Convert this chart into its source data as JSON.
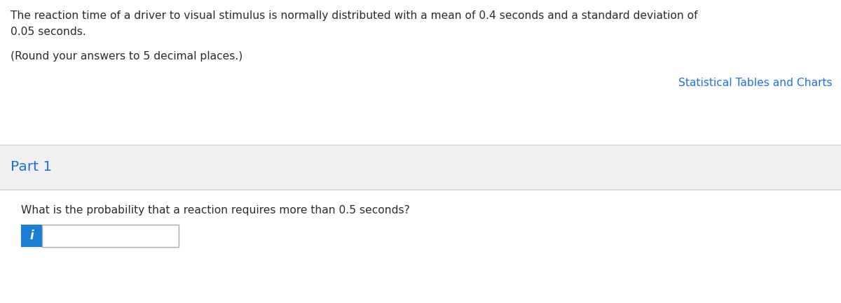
{
  "bg_color": "#ffffff",
  "section2_bg": "#f0f0f2",
  "main_text_line1": "The reaction time of a driver to visual stimulus is normally distributed with a mean of 0.4 seconds and a standard deviation of",
  "main_text_line2": "0.05 seconds.",
  "round_text": "(Round your answers to 5 decimal places.)",
  "link_text": "Statistical Tables and Charts",
  "link_color": "#1a73e8",
  "part_label": "Part 1",
  "part_color": "#1a73e8",
  "question_text": "What is the probability that a reaction requires more than 0.5 seconds?",
  "main_text_color": "#2c2c2c",
  "divider_color": "#cccccc",
  "info_button_color": "#1a7fd4",
  "info_button_text": "i",
  "input_border_color": "#aaaaaa"
}
